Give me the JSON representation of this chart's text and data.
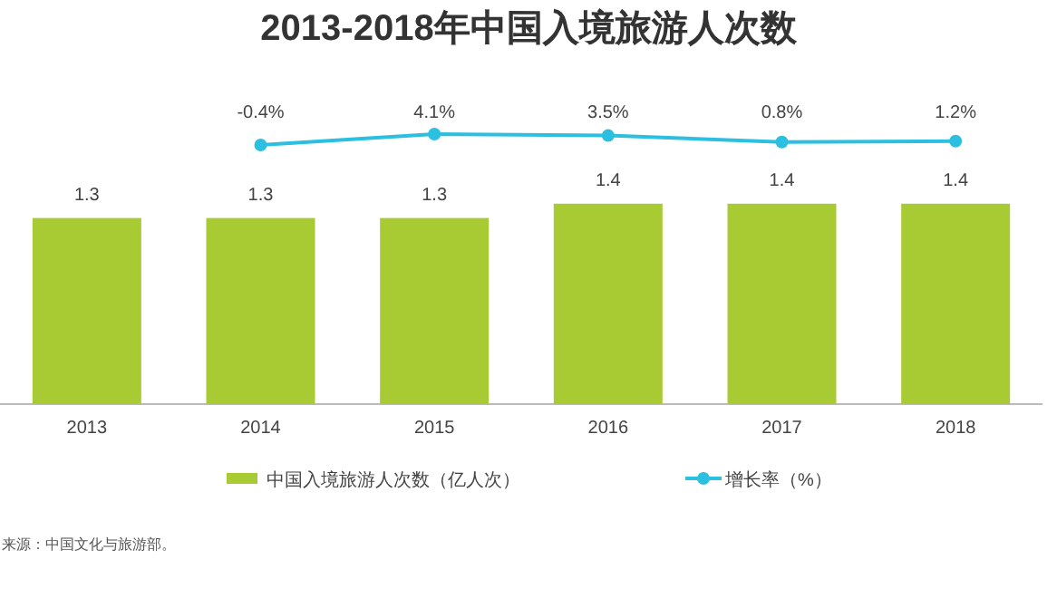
{
  "chart_data": [
    {
      "type": "line",
      "title": "2013-2018年中国入境旅游人次数",
      "categories": [
        null,
        null,
        null,
        null,
        null,
        null
      ],
      "series": [
        {
          "name": "增长率（%）",
          "color": "#2cbfe0",
          "values": [
            null,
            -0.4,
            4.1,
            3.5,
            0.8,
            1.2
          ],
          "value_labels": [
            null,
            "-0.4%",
            "4.1%",
            "3.5%",
            "0.8%",
            "1.2%"
          ]
        }
      ],
      "marker": "circle",
      "legend": "bottom"
    },
    {
      "type": "bar",
      "categories": [
        "2013",
        "2014",
        "2015",
        "2016",
        "2017",
        "2018"
      ],
      "series": [
        {
          "name": "中国入境旅游人次数（亿人次）",
          "color": "#a8cb34",
          "values": [
            1.3,
            1.3,
            1.3,
            1.4,
            1.4,
            1.4
          ],
          "value_labels": [
            "1.3",
            "1.3",
            "1.3",
            "1.4",
            "1.4",
            "1.4"
          ]
        }
      ],
      "legend": "bottom",
      "annotations": [
        "来源：中国文化与旅游部。"
      ]
    }
  ]
}
